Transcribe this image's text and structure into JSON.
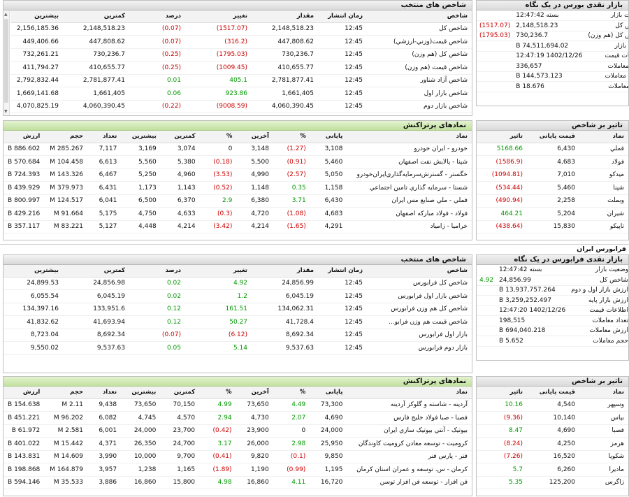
{
  "tehran": {
    "index_panel": {
      "title": "شاخص های منتخب",
      "headers": [
        "شاخص",
        "زمان انتشار",
        "مقدار",
        "تغییر",
        "درصد",
        "کمترین",
        "بیشترین"
      ],
      "rows": [
        [
          "شاخص كل",
          "12:45",
          "2,148,518.23",
          "(1517.07)",
          "(0.07)",
          "2,148,518.23",
          "2,156,185.36"
        ],
        [
          "شاخص قيمت(وزني-ارزشي)",
          "12:45",
          "447,808.62",
          "(316.2)",
          "(0.07)",
          "447,808.62",
          "449,406.66"
        ],
        [
          "شاخص كل (هم وزن)",
          "12:45",
          "730,236.7",
          "(1795.03)",
          "(0.25)",
          "730,236.7",
          "732,261.21"
        ],
        [
          "شاخص قيمت (هم وزن)",
          "12:45",
          "410,655.77",
          "(1009.45)",
          "(0.25)",
          "410,655.77",
          "411,794.27"
        ],
        [
          "شاخص آزاد شناور",
          "12:45",
          "2,781,877.41",
          "405.1",
          "0.01",
          "2,781,877.41",
          "2,792,832.44"
        ],
        [
          "شاخص بازار اول",
          "12:45",
          "1,661,405",
          "923.86",
          "0.06",
          "1,661,405",
          "1,669,141.68"
        ],
        [
          "شاخص بازار دوم",
          "12:45",
          "4,060,390.45",
          "(9008.59)",
          "(0.22)",
          "4,060,390.45",
          "4,070,825.19"
        ]
      ]
    },
    "glance": {
      "title": "بازار نقدی بورس در یک نگاه",
      "rows": [
        [
          "وضعيت بازار",
          "بسته 12:47:42",
          ""
        ],
        [
          "شاخص كل",
          "2,148,518.23",
          "(1517.07)"
        ],
        [
          "شاخص كل (هم وزن)",
          "730,236.7",
          "(1795.03)"
        ],
        [
          "ارزش بازار",
          "74,511,694.02 B",
          ""
        ],
        [
          "اطلاعات قيمت",
          "1402/12/26 12:47:19",
          ""
        ],
        [
          "تعداد معاملات",
          "336,657",
          ""
        ],
        [
          "ارزش معاملات",
          "144,573.123 B",
          ""
        ],
        [
          "حجم معاملات",
          "18.676 B",
          ""
        ]
      ]
    },
    "symbols": {
      "title": "نمادهای پرتراکنش",
      "headers": [
        "نماد",
        "پایانی",
        "%",
        "آخرین",
        "%",
        "کمترین",
        "بیشترین",
        "تعداد",
        "حجم",
        "ارزش"
      ],
      "rows": [
        [
          "خودرو - ايران خودرو",
          "3,108",
          "(1.27)",
          "3,148",
          "0",
          "3,074",
          "3,169",
          "7,117",
          "285.267 M",
          "886.602 B"
        ],
        [
          "شپنا - پالايش نفت اصفهان",
          "5,460",
          "(0.91)",
          "5,500",
          "(0.18)",
          "5,380",
          "5,560",
          "6,613",
          "104.458 M",
          "570.684 B"
        ],
        [
          "خگستر - گسترش‌سرمايه‌گذاري‌ايران‌خودرو",
          "5,050",
          "(2.57)",
          "4,990",
          "(3.53)",
          "4,960",
          "5,250",
          "6,467",
          "143.326 M",
          "724.393 B"
        ],
        [
          "شستا - سرمايه گذاري تامين اجتماعي",
          "1,158",
          "0.35",
          "1,148",
          "(0.52)",
          "1,143",
          "1,173",
          "6,431",
          "379.973 M",
          "439.929 B"
        ],
        [
          "فملي - ملي صنايع مس ايران",
          "6,430",
          "3.71",
          "6,380",
          "2.9",
          "6,370",
          "6,500",
          "6,041",
          "124.517 M",
          "800.997 B"
        ],
        [
          "فولاد - فولاد مباركه اصفهان",
          "4,683",
          "(1.08)",
          "4,720",
          "(0.3)",
          "4,633",
          "4,750",
          "5,175",
          "91.664 M",
          "429.216 B"
        ],
        [
          "خراميا - زامياد",
          "4,291",
          "(1.65)",
          "4,214",
          "(3.42)",
          "4,214",
          "4,448",
          "5,127",
          "83.221 M",
          "357.117 B"
        ]
      ]
    },
    "impact": {
      "title": "تاثیر بر شاخص",
      "headers": [
        "نماد",
        "قیمت پایانی",
        "تاثیر"
      ],
      "rows": [
        [
          "فملي",
          "6,430",
          "5168.66"
        ],
        [
          "فولاد",
          "4,683",
          "(1586.9)"
        ],
        [
          "ميدكو",
          "7,010",
          "(1094.81)"
        ],
        [
          "شپنا",
          "5,460",
          "(534.44)"
        ],
        [
          "وبملت",
          "2,258",
          "(490.94)"
        ],
        [
          "شيران",
          "5,204",
          "464.21"
        ],
        [
          "تاپيكو",
          "15,830",
          "(438.64)"
        ]
      ]
    }
  },
  "section_title": "فرابورس ایران",
  "ifb": {
    "index_panel": {
      "title": "شاخص های منتخب",
      "headers": [
        "شاخص",
        "زمان انتشار",
        "مقدار",
        "تغییر",
        "درصد",
        "کمترین",
        "بیشترین"
      ],
      "rows": [
        [
          "شاخص كل فرابورس",
          "12:45",
          "24,856.99",
          "4.92",
          "0.02",
          "24,856.98",
          "24,899.53"
        ],
        [
          "شاخص بازار اول فرابورس",
          "12:45",
          "6,045.19",
          "1.2",
          "0.02",
          "6,045.19",
          "6,055.54"
        ],
        [
          "شاخص كل هم وزن فرابورس",
          "12:45",
          "134,062.31",
          "161.51",
          "0.12",
          "133,951.6",
          "134,397.16"
        ],
        [
          "شاخص قيمت هم وزن فرابو...",
          "12:45",
          "41,728.4",
          "50.27",
          "0.12",
          "41,693.94",
          "41,832.62"
        ],
        [
          "بازار اول فرابورس",
          "12:45",
          "8,692.34",
          "(6.12)",
          "(0.07)",
          "8,692.34",
          "8,723.04"
        ],
        [
          "بازار دوم فرابورس",
          "12:45",
          "9,537.63",
          "5.14",
          "0.05",
          "9,537.63",
          "9,550.02"
        ]
      ]
    },
    "glance": {
      "title": "بازار نقدی فرابورس در یک نگاه",
      "rows": [
        [
          "وضعيت بازار",
          "بسته 12:47:42",
          ""
        ],
        [
          "شاخص كل",
          "24,856.99",
          "4.92"
        ],
        [
          "ارزش بازار اول و دوم",
          "13,937,757.264 B",
          ""
        ],
        [
          "ارزش بازار پايه",
          "3,259,252.497 B",
          ""
        ],
        [
          "اطلاعات قيمت",
          "1402/12/26 12:47:20",
          ""
        ],
        [
          "تعداد معاملات",
          "198,515",
          ""
        ],
        [
          "ارزش معاملات",
          "694,040.218 B",
          ""
        ],
        [
          "حجم معاملات",
          "5.652 B",
          ""
        ]
      ]
    },
    "symbols": {
      "title": "نمادهای پرتراکنش",
      "headers": [
        "نماد",
        "پایانی",
        "%",
        "آخرین",
        "%",
        "کمترین",
        "بیشترین",
        "تعداد",
        "حجم",
        "ارزش"
      ],
      "rows": [
        [
          "آردينه - شاسته و گلوكز آردينه",
          "73,300",
          "4.49",
          "73,650",
          "4.99",
          "70,150",
          "73,650",
          "9,438",
          "2.11 M",
          "154.638 B"
        ],
        [
          "فصبا - صبا فولاد خليج فارس",
          "4,690",
          "2.07",
          "4,730",
          "2.94",
          "4,570",
          "4,745",
          "6,082",
          "96.202 M",
          "451.221 B"
        ],
        [
          "بيوتيک - آنتي بيوتيک سازي ايران",
          "24,000",
          "0",
          "23,900",
          "(0.42)",
          "23,700",
          "24,000",
          "6,001",
          "2.581 M",
          "61.972 B"
        ],
        [
          "كرومیت - توسعه معادن كرومیت كاوندگان",
          "25,950",
          "2.98",
          "26,000",
          "3.17",
          "24,700",
          "26,350",
          "4,371",
          "15.442 M",
          "401.022 B"
        ],
        [
          "فنر - پارس فنر",
          "9,850",
          "(0.1)",
          "9,820",
          "(0.41)",
          "9,700",
          "10,000",
          "3,990",
          "14.609 M",
          "143.831 B"
        ],
        [
          "كرمان - س. توسعه و عمران استان كرمان",
          "1,195",
          "(0.99)",
          "1,190",
          "(1.89)",
          "1,165",
          "1,238",
          "3,957",
          "164.879 M",
          "198.868 B"
        ],
        [
          "فن افزار - توسعه فن افزار توسن",
          "16,720",
          "4.11",
          "16,860",
          "4.98",
          "15,800",
          "16,860",
          "3,886",
          "35.533 M",
          "594.146 B"
        ]
      ]
    },
    "impact": {
      "title": "تاثیر بر شاخص",
      "headers": [
        "نماد",
        "قیمت پایانی",
        "تاثیر"
      ],
      "rows": [
        [
          "وسپهر",
          "4,540",
          "10.16"
        ],
        [
          "بپاس",
          "10,140",
          "(9.36)"
        ],
        [
          "فصبا",
          "4,690",
          "8.47"
        ],
        [
          "هرمز",
          "4,250",
          "(8.24)"
        ],
        [
          "شكويا",
          "16,520",
          "(7.26)"
        ],
        [
          "ماديرا",
          "6,260",
          "5.7"
        ],
        [
          "زاگرس",
          "125,200",
          "5.35"
        ]
      ]
    }
  },
  "colors": {
    "negative": "#cc0000",
    "positive": "#009900",
    "header_green": "#c2e0a0",
    "header_gray": "#dadada"
  }
}
